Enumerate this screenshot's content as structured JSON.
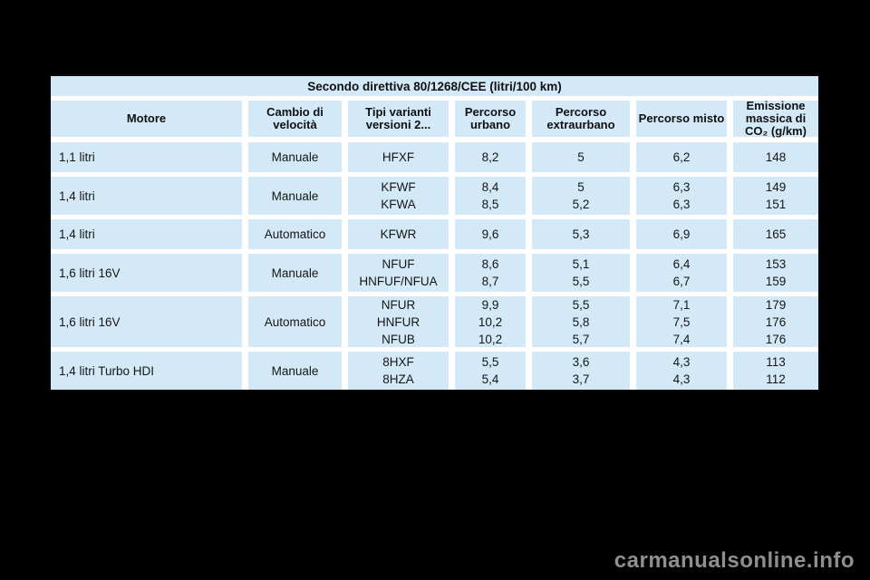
{
  "table": {
    "title": "Secondo direttiva 80/1268/CEE (litri/100 km)",
    "columns": [
      "Motore",
      "Cambio di velocità",
      "Tipi varianti versioni 2...",
      "Percorso urbano",
      "Percorso extraurbano",
      "Percorso misto",
      "Emissione massica di CO₂ (g/km)"
    ],
    "rows": [
      {
        "motore": "1,1 litri",
        "cambio": "Manuale",
        "variants": [
          {
            "tipo": "HFXF",
            "urbano": "8,2",
            "extraurbano": "5",
            "misto": "6,2",
            "co2": "148"
          }
        ]
      },
      {
        "motore": "1,4 litri",
        "cambio": "Manuale",
        "variants": [
          {
            "tipo": "KFWF",
            "urbano": "8,4",
            "extraurbano": "5",
            "misto": "6,3",
            "co2": "149"
          },
          {
            "tipo": "KFWA",
            "urbano": "8,5",
            "extraurbano": "5,2",
            "misto": "6,3",
            "co2": "151"
          }
        ]
      },
      {
        "motore": "1,4 litri",
        "cambio": "Automatico",
        "variants": [
          {
            "tipo": "KFWR",
            "urbano": "9,6",
            "extraurbano": "5,3",
            "misto": "6,9",
            "co2": "165"
          }
        ]
      },
      {
        "motore": "1,6 litri 16V",
        "cambio": "Manuale",
        "variants": [
          {
            "tipo": "NFUF",
            "urbano": "8,6",
            "extraurbano": "5,1",
            "misto": "6,4",
            "co2": "153"
          },
          {
            "tipo": "HNFUF/NFUA",
            "urbano": "8,7",
            "extraurbano": "5,5",
            "misto": "6,7",
            "co2": "159"
          }
        ]
      },
      {
        "motore": "1,6 litri 16V",
        "cambio": "Automatico",
        "variants": [
          {
            "tipo": "NFUR",
            "urbano": "9,9",
            "extraurbano": "5,5",
            "misto": "7,1",
            "co2": "179"
          },
          {
            "tipo": "HNFUR",
            "urbano": "10,2",
            "extraurbano": "5,8",
            "misto": "7,5",
            "co2": "176"
          },
          {
            "tipo": "NFUB",
            "urbano": "10,2",
            "extraurbano": "5,7",
            "misto": "7,4",
            "co2": "176"
          }
        ]
      },
      {
        "motore": "1,4 litri Turbo HDI",
        "cambio": "Manuale",
        "variants": [
          {
            "tipo": "8HXF",
            "urbano": "5,5",
            "extraurbano": "3,6",
            "misto": "4,3",
            "co2": "113"
          },
          {
            "tipo": "8HZA",
            "urbano": "5,4",
            "extraurbano": "3,7",
            "misto": "4,3",
            "co2": "112"
          }
        ]
      }
    ]
  },
  "watermark": {
    "text": "carmanualsonline.info"
  },
  "colors": {
    "page_background": "#000000",
    "cell_blue": "#d3e9f7",
    "grid_white": "#ffffff",
    "border_black": "#060606",
    "watermark_gray": "#8f8f8f"
  }
}
